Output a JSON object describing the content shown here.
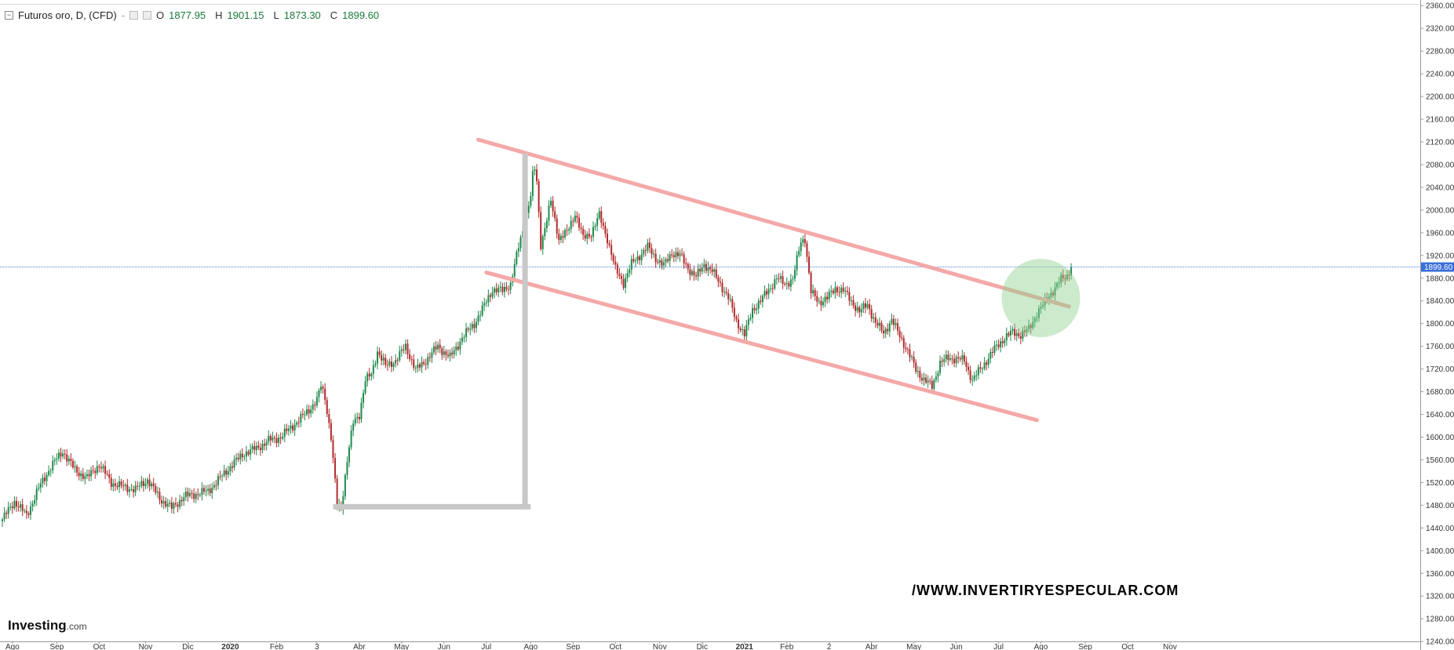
{
  "header": {
    "symbol": "Futuros oro, D, (CFD)",
    "dash": "-",
    "o_label": "O",
    "o_value": "1877.95",
    "h_label": "H",
    "h_value": "1901.15",
    "l_label": "L",
    "l_value": "1873.30",
    "c_label": "C",
    "c_value": "1899.60"
  },
  "brand": {
    "name": "Investing",
    "suffix": ".com"
  },
  "watermark": "/WWW.INVERTIRYESPECULAR.COM",
  "colors": {
    "up": "#1f8a4c",
    "down": "#b22a2a",
    "channel": "#f4a8a8",
    "measure": "#c8c8c8",
    "circle": "#8fd18f",
    "price_line": "#3a6fd8",
    "price_badge": "#3a6fd8"
  },
  "chart_data": {
    "type": "candlestick",
    "title": "Futuros oro, D, (CFD)",
    "y_ticks": [
      1240,
      1280,
      1320,
      1360,
      1400,
      1440,
      1480,
      1520,
      1560,
      1600,
      1640,
      1680,
      1720,
      1760,
      1800,
      1840,
      1880,
      1920,
      1960,
      2000,
      2040,
      2080,
      2120,
      2160,
      2200,
      2240,
      2280,
      2320,
      2360
    ],
    "ylim": [
      1225,
      2370
    ],
    "x_labels": [
      {
        "label": "Ago",
        "i": 5
      },
      {
        "label": "Sep",
        "i": 27
      },
      {
        "label": "Oct",
        "i": 48
      },
      {
        "label": "Nov",
        "i": 71
      },
      {
        "label": "Dic",
        "i": 92
      },
      {
        "label": "2020",
        "i": 113,
        "bold": true
      },
      {
        "label": "Feb",
        "i": 136
      },
      {
        "label": "3",
        "i": 156
      },
      {
        "label": "Abr",
        "i": 177
      },
      {
        "label": "May",
        "i": 198
      },
      {
        "label": "Jun",
        "i": 219
      },
      {
        "label": "Jul",
        "i": 240
      },
      {
        "label": "Ago",
        "i": 262
      },
      {
        "label": "Sep",
        "i": 283
      },
      {
        "label": "Oct",
        "i": 304
      },
      {
        "label": "Nov",
        "i": 326
      },
      {
        "label": "Dic",
        "i": 347
      },
      {
        "label": "2021",
        "i": 368,
        "bold": true
      },
      {
        "label": "Feb",
        "i": 389
      },
      {
        "label": "2",
        "i": 410
      },
      {
        "label": "Abr",
        "i": 431
      },
      {
        "label": "May",
        "i": 452
      },
      {
        "label": "Jun",
        "i": 473
      },
      {
        "label": "Jul",
        "i": 494
      },
      {
        "label": "Ago",
        "i": 515
      },
      {
        "label": "Sep",
        "i": 537
      },
      {
        "label": "Oct",
        "i": 558
      },
      {
        "label": "Nov",
        "i": 579
      }
    ],
    "x_range": [
      0,
      600
    ],
    "last_price": 1899.6,
    "last_price_label": "1899.60",
    "anchors": [
      [
        0,
        1455
      ],
      [
        6,
        1487
      ],
      [
        12,
        1462
      ],
      [
        18,
        1510
      ],
      [
        24,
        1548
      ],
      [
        30,
        1575
      ],
      [
        36,
        1542
      ],
      [
        42,
        1528
      ],
      [
        48,
        1552
      ],
      [
        54,
        1520
      ],
      [
        60,
        1512
      ],
      [
        66,
        1508
      ],
      [
        72,
        1525
      ],
      [
        78,
        1492
      ],
      [
        84,
        1475
      ],
      [
        90,
        1495
      ],
      [
        96,
        1500
      ],
      [
        102,
        1505
      ],
      [
        108,
        1528
      ],
      [
        114,
        1552
      ],
      [
        120,
        1572
      ],
      [
        126,
        1580
      ],
      [
        132,
        1594
      ],
      [
        138,
        1600
      ],
      [
        144,
        1620
      ],
      [
        150,
        1640
      ],
      [
        156,
        1665
      ],
      [
        158,
        1690
      ],
      [
        160,
        1670
      ],
      [
        163,
        1600
      ],
      [
        166,
        1480
      ],
      [
        168,
        1475
      ],
      [
        171,
        1560
      ],
      [
        174,
        1625
      ],
      [
        177,
        1640
      ],
      [
        180,
        1700
      ],
      [
        183,
        1710
      ],
      [
        186,
        1752
      ],
      [
        190,
        1725
      ],
      [
        195,
        1735
      ],
      [
        200,
        1760
      ],
      [
        205,
        1718
      ],
      [
        210,
        1735
      ],
      [
        216,
        1760
      ],
      [
        222,
        1740
      ],
      [
        228,
        1775
      ],
      [
        234,
        1800
      ],
      [
        238,
        1825
      ],
      [
        243,
        1860
      ],
      [
        248,
        1858
      ],
      [
        252,
        1870
      ],
      [
        256,
        1935
      ],
      [
        259,
        1978
      ],
      [
        262,
        2025
      ],
      [
        263,
        2060
      ],
      [
        264,
        2072
      ],
      [
        265,
        2050
      ],
      [
        267,
        1940
      ],
      [
        269,
        1968
      ],
      [
        272,
        2015
      ],
      [
        276,
        1950
      ],
      [
        280,
        1960
      ],
      [
        284,
        1995
      ],
      [
        288,
        1950
      ],
      [
        292,
        1960
      ],
      [
        296,
        1990
      ],
      [
        300,
        1950
      ],
      [
        304,
        1895
      ],
      [
        308,
        1872
      ],
      [
        312,
        1905
      ],
      [
        316,
        1920
      ],
      [
        320,
        1935
      ],
      [
        324,
        1915
      ],
      [
        328,
        1902
      ],
      [
        332,
        1925
      ],
      [
        336,
        1920
      ],
      [
        340,
        1898
      ],
      [
        344,
        1882
      ],
      [
        348,
        1905
      ],
      [
        352,
        1892
      ],
      [
        356,
        1870
      ],
      [
        360,
        1845
      ],
      [
        364,
        1805
      ],
      [
        368,
        1780
      ],
      [
        372,
        1825
      ],
      [
        376,
        1840
      ],
      [
        380,
        1860
      ],
      [
        384,
        1880
      ],
      [
        388,
        1870
      ],
      [
        392,
        1878
      ],
      [
        396,
        1945
      ],
      [
        398,
        1950
      ],
      [
        401,
        1855
      ],
      [
        405,
        1838
      ],
      [
        409,
        1845
      ],
      [
        413,
        1862
      ],
      [
        417,
        1858
      ],
      [
        421,
        1840
      ],
      [
        425,
        1820
      ],
      [
        429,
        1835
      ],
      [
        433,
        1800
      ],
      [
        437,
        1785
      ],
      [
        441,
        1805
      ],
      [
        445,
        1780
      ],
      [
        449,
        1750
      ],
      [
        453,
        1720
      ],
      [
        457,
        1700
      ],
      [
        461,
        1690
      ],
      [
        465,
        1730
      ],
      [
        469,
        1740
      ],
      [
        473,
        1738
      ],
      [
        477,
        1735
      ],
      [
        481,
        1700
      ],
      [
        485,
        1720
      ],
      [
        489,
        1740
      ],
      [
        493,
        1760
      ],
      [
        497,
        1775
      ],
      [
        501,
        1785
      ],
      [
        505,
        1780
      ],
      [
        509,
        1790
      ],
      [
        513,
        1818
      ],
      [
        516,
        1832
      ],
      [
        519,
        1850
      ],
      [
        522,
        1862
      ],
      [
        525,
        1878
      ],
      [
        528,
        1885
      ],
      [
        530,
        1899
      ]
    ]
  },
  "drawings": {
    "channel_upper": [
      [
        236,
        2124
      ],
      [
        529,
        1830
      ]
    ],
    "channel_lower": [
      [
        240,
        1890
      ],
      [
        513,
        1630
      ]
    ],
    "measure_vertical": {
      "i": 259,
      "from": 1478,
      "to": 2100
    },
    "measure_horizontal": {
      "from_i": 164,
      "to_i": 262,
      "price": 1478
    },
    "highlight_circle": {
      "center_i": 515,
      "center_price": 1845,
      "radius_px": 50
    }
  }
}
